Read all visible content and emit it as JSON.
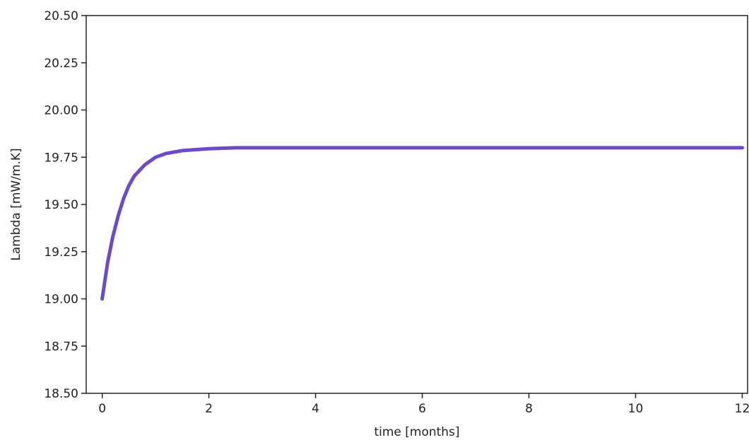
{
  "chart_data": {
    "type": "line",
    "title": "",
    "xlabel": "time [months]",
    "ylabel": "Lambda [mW/m.K]",
    "xlim": [
      -0.3,
      12.1
    ],
    "ylim": [
      18.5,
      20.5
    ],
    "xticks": [
      0,
      2,
      4,
      6,
      8,
      10,
      12
    ],
    "yticks": [
      18.5,
      18.75,
      19.0,
      19.25,
      19.5,
      19.75,
      20.0,
      20.25,
      20.5
    ],
    "xtick_labels": [
      "0",
      "2",
      "4",
      "6",
      "8",
      "10",
      "12"
    ],
    "ytick_labels": [
      "18.50",
      "18.75",
      "19.00",
      "19.25",
      "19.50",
      "19.75",
      "20.00",
      "20.25",
      "20.50"
    ],
    "grid": false,
    "line_color": "#6a4bc8",
    "series": [
      {
        "x": [
          0,
          0.1,
          0.2,
          0.3,
          0.4,
          0.5,
          0.6,
          0.8,
          1.0,
          1.2,
          1.5,
          2.0,
          2.5,
          3.0,
          4.0,
          5.0,
          6.0,
          8.0,
          10.0,
          12.0
        ],
        "values": [
          19.0,
          19.19,
          19.33,
          19.44,
          19.53,
          19.6,
          19.65,
          19.71,
          19.75,
          19.77,
          19.785,
          19.795,
          19.8,
          19.8,
          19.8,
          19.8,
          19.8,
          19.8,
          19.8,
          19.8
        ]
      }
    ]
  }
}
